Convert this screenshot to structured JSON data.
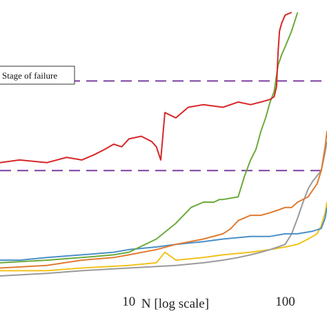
{
  "chart_data": {
    "type": "line",
    "title": "",
    "xlabel": "N [log scale]",
    "ylabel": "",
    "x_scale": "log",
    "xlim": [
      1.5,
      185
    ],
    "ylim": [
      0,
      100
    ],
    "x_ticks": [
      {
        "value": 10,
        "label": "10"
      },
      {
        "value": 100,
        "label": "100"
      }
    ],
    "grid": false,
    "legend": {
      "placement": "top-left",
      "entries": [
        "Stage of failure"
      ]
    },
    "reference_lines": [
      {
        "y": 74,
        "color": "#7b3fa0",
        "style": "dashed"
      },
      {
        "y": 40,
        "color": "#7b3fa0",
        "style": "dashed"
      }
    ],
    "series": [
      {
        "color": "#d62728",
        "x": [
          1.5,
          2,
          3,
          4,
          5,
          6,
          7,
          8,
          9,
          10,
          12,
          14,
          15,
          16,
          17,
          20,
          24,
          30,
          40,
          50,
          60,
          70,
          80,
          85,
          88,
          90,
          92,
          95,
          100,
          110
        ],
        "y": [
          43,
          44,
          43,
          45,
          44,
          46,
          48,
          50,
          49,
          52,
          53,
          51,
          49,
          44,
          62,
          60,
          64,
          65,
          64,
          66,
          65,
          66,
          67,
          68,
          72,
          85,
          93,
          96,
          99,
          100
        ]
      },
      {
        "color": "#6aaa3a",
        "x": [
          1.5,
          3,
          5,
          8,
          10,
          15,
          20,
          25,
          30,
          35,
          38,
          40,
          50,
          55,
          60,
          65,
          70,
          75,
          80,
          85,
          90,
          95,
          100,
          110,
          120
        ],
        "y": [
          5,
          6,
          7,
          8,
          9,
          14,
          20,
          26,
          28,
          28,
          29,
          29,
          30,
          38,
          44,
          48,
          55,
          60,
          66,
          70,
          80,
          84,
          87,
          93,
          100
        ]
      },
      {
        "color": "#e07a30",
        "x": [
          1.5,
          3,
          5,
          8,
          10,
          15,
          20,
          30,
          40,
          45,
          50,
          60,
          70,
          80,
          90,
          100,
          110,
          120,
          140,
          160,
          170,
          180,
          185
        ],
        "y": [
          3,
          4,
          6,
          7,
          8,
          10,
          12,
          14,
          16,
          18,
          21,
          23,
          23,
          24,
          25,
          26,
          26,
          28,
          30,
          35,
          40,
          49,
          55
        ]
      },
      {
        "color": "#4a90c8",
        "x": [
          1.5,
          2,
          3,
          5,
          8,
          10,
          15,
          20,
          30,
          40,
          60,
          80,
          100,
          120,
          150,
          170,
          180,
          185
        ],
        "y": [
          6,
          6,
          7,
          8,
          9,
          10,
          11,
          12,
          13,
          14,
          15,
          15,
          16,
          16,
          17,
          18,
          22,
          26
        ]
      },
      {
        "color": "#9a9a9a",
        "x": [
          1.5,
          3,
          5,
          10,
          20,
          30,
          40,
          50,
          60,
          70,
          80,
          90,
          100,
          110,
          120,
          130,
          140,
          150,
          160,
          170,
          180,
          185
        ],
        "y": [
          0,
          1,
          2,
          3,
          4,
          5,
          6,
          7,
          8,
          9,
          10,
          11,
          12,
          16,
          22,
          28,
          33,
          36,
          38,
          40,
          47,
          51
        ]
      },
      {
        "color": "#f2c21a",
        "x": [
          1.5,
          3,
          5,
          10,
          15,
          17,
          20,
          30,
          40,
          60,
          80,
          100,
          120,
          140,
          160,
          170,
          180,
          185
        ],
        "y": [
          2,
          2,
          3,
          4,
          5,
          9,
          6,
          7,
          8,
          9,
          10,
          11,
          12,
          14,
          16,
          19,
          24,
          28
        ]
      }
    ]
  }
}
